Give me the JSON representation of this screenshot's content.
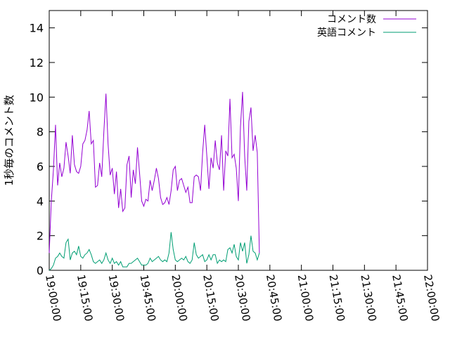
{
  "chart_data": {
    "type": "line",
    "title": "",
    "xlabel": "",
    "ylabel": "1秒毎のコメント数",
    "xlim": [
      "19:00:00",
      "22:00:00"
    ],
    "ylim": [
      0,
      15
    ],
    "x_ticks": [
      "19:00:00",
      "19:15:00",
      "19:30:00",
      "19:45:00",
      "20:00:00",
      "20:15:00",
      "20:30:00",
      "20:45:00",
      "21:00:00",
      "21:15:00",
      "21:30:00",
      "21:45:00",
      "22:00:00"
    ],
    "y_ticks": [
      "0",
      "2",
      "4",
      "6",
      "8",
      "10",
      "12",
      "14"
    ],
    "legend_position": "top-right",
    "grid": false,
    "sample_start": "19:00:00",
    "sample_interval_seconds": 60,
    "series": [
      {
        "name": "コメント数",
        "color": "#9400d3",
        "values": [
          1.0,
          4.0,
          5.8,
          8.4,
          4.9,
          6.2,
          5.4,
          5.9,
          7.4,
          6.6,
          5.6,
          7.8,
          6.1,
          5.7,
          5.6,
          6.0,
          7.3,
          7.5,
          8.1,
          9.2,
          7.3,
          7.5,
          4.8,
          4.9,
          6.2,
          5.4,
          8.0,
          10.2,
          7.3,
          5.5,
          5.9,
          4.4,
          5.7,
          3.6,
          4.7,
          3.4,
          3.6,
          6.1,
          6.6,
          4.2,
          5.8,
          5.0,
          7.1,
          5.6,
          4.0,
          3.7,
          4.1,
          4.0,
          5.2,
          4.6,
          5.2,
          5.9,
          5.3,
          4.2,
          3.8,
          3.9,
          4.2,
          3.8,
          4.6,
          5.8,
          6.0,
          4.6,
          5.2,
          5.3,
          4.9,
          4.5,
          4.8,
          3.9,
          3.9,
          5.4,
          5.5,
          5.4,
          4.6,
          6.8,
          8.4,
          6.6,
          4.7,
          6.5,
          5.9,
          7.5,
          6.2,
          5.8,
          7.8,
          4.6,
          6.9,
          6.6,
          9.9,
          6.5,
          6.7,
          5.9,
          4.0,
          8.3,
          10.3,
          6.6,
          4.6,
          8.6,
          9.4,
          6.9,
          7.8,
          6.8,
          1.0
        ]
      },
      {
        "name": "英語コメント",
        "color": "#009e73",
        "values": [
          0.0,
          0.1,
          0.3,
          0.7,
          0.8,
          1.0,
          0.8,
          0.7,
          1.6,
          1.8,
          0.6,
          1.0,
          1.1,
          0.9,
          1.4,
          0.8,
          0.7,
          0.9,
          1.0,
          1.2,
          0.9,
          0.5,
          0.4,
          0.5,
          0.6,
          0.4,
          0.6,
          1.0,
          0.6,
          0.4,
          0.7,
          0.4,
          0.5,
          0.3,
          0.5,
          0.2,
          0.2,
          0.2,
          0.4,
          0.4,
          0.5,
          0.6,
          0.7,
          0.5,
          0.3,
          0.3,
          0.3,
          0.4,
          0.7,
          0.5,
          0.6,
          0.7,
          0.8,
          0.6,
          0.5,
          0.6,
          0.5,
          1.0,
          2.2,
          1.2,
          0.6,
          0.5,
          0.6,
          0.7,
          0.6,
          0.8,
          0.5,
          0.4,
          0.6,
          1.6,
          0.9,
          0.7,
          0.8,
          0.9,
          0.5,
          0.6,
          0.9,
          0.6,
          0.9,
          0.9,
          0.4,
          0.6,
          0.5,
          0.6,
          0.5,
          1.2,
          1.3,
          1.0,
          1.5,
          0.8,
          0.6,
          1.6,
          1.1,
          1.6,
          0.4,
          0.9,
          2.0,
          1.1,
          1.0,
          0.6,
          1.0
        ]
      }
    ]
  }
}
